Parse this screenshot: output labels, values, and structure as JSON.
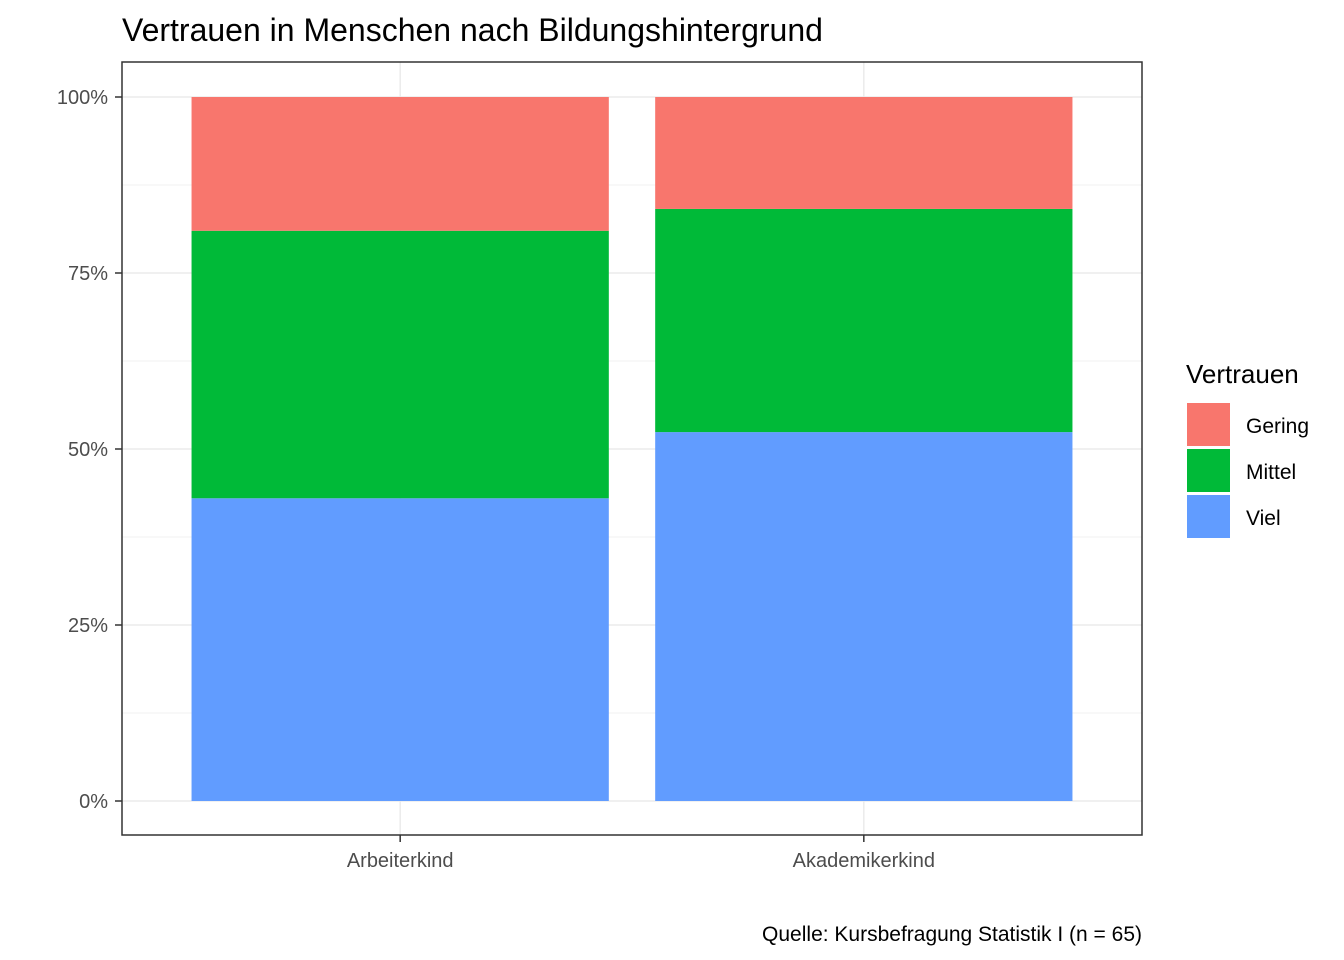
{
  "chart_data": {
    "type": "bar",
    "stacked": true,
    "title": "Vertrauen in Menschen nach Bildungshintergrund",
    "caption": "Quelle: Kursbefragung Statistik I (n = 65)",
    "categories": [
      "Arbeiterkind",
      "Akademikerkind"
    ],
    "xlabel": "",
    "ylabel": "",
    "ylim": [
      0,
      1
    ],
    "yticks": [
      {
        "value": 0,
        "label": "0%"
      },
      {
        "value": 0.25,
        "label": "25%"
      },
      {
        "value": 0.5,
        "label": "50%"
      },
      {
        "value": 0.75,
        "label": "75%"
      },
      {
        "value": 1,
        "label": "100%"
      }
    ],
    "series": [
      {
        "name": "Viel",
        "color": "#619CFF",
        "values": [
          0.43,
          0.524
        ]
      },
      {
        "name": "Mittel",
        "color": "#00BA38",
        "values": [
          0.38,
          0.317
        ]
      },
      {
        "name": "Gering",
        "color": "#F8766D",
        "values": [
          0.19,
          0.159
        ]
      }
    ],
    "legend": {
      "title": "Vertrauen",
      "position": "right",
      "order": [
        "Gering",
        "Mittel",
        "Viel"
      ]
    },
    "grid": true
  }
}
